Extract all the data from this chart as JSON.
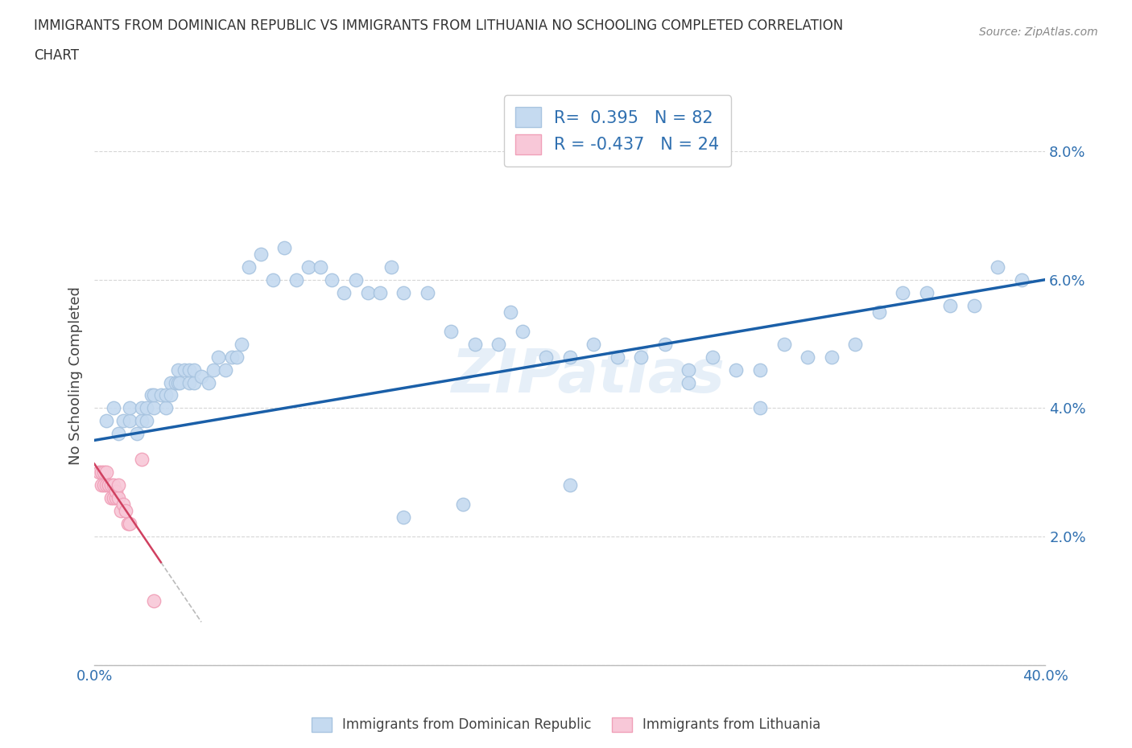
{
  "title_line1": "IMMIGRANTS FROM DOMINICAN REPUBLIC VS IMMIGRANTS FROM LITHUANIA NO SCHOOLING COMPLETED CORRELATION",
  "title_line2": "CHART",
  "source_text": "Source: ZipAtlas.com",
  "ylabel": "No Schooling Completed",
  "xlim": [
    0.0,
    0.4
  ],
  "ylim": [
    0.0,
    0.09
  ],
  "r_blue": 0.395,
  "n_blue": 82,
  "r_pink": -0.437,
  "n_pink": 24,
  "blue_scatter_color": "#c5daf0",
  "blue_scatter_edge": "#a8c4e0",
  "pink_scatter_color": "#f8c8d8",
  "pink_scatter_edge": "#f0a0b8",
  "blue_line_color": "#1a5fa8",
  "pink_line_color": "#d04060",
  "legend_label_blue": "Immigrants from Dominican Republic",
  "legend_label_pink": "Immigrants from Lithuania",
  "watermark": "ZIPatlas",
  "blue_x": [
    0.005,
    0.008,
    0.01,
    0.012,
    0.015,
    0.015,
    0.018,
    0.02,
    0.02,
    0.022,
    0.022,
    0.024,
    0.025,
    0.025,
    0.028,
    0.03,
    0.03,
    0.032,
    0.032,
    0.034,
    0.035,
    0.035,
    0.036,
    0.038,
    0.04,
    0.04,
    0.042,
    0.042,
    0.045,
    0.048,
    0.05,
    0.052,
    0.055,
    0.058,
    0.06,
    0.062,
    0.065,
    0.07,
    0.075,
    0.08,
    0.085,
    0.09,
    0.095,
    0.1,
    0.105,
    0.11,
    0.115,
    0.12,
    0.125,
    0.13,
    0.14,
    0.15,
    0.16,
    0.17,
    0.175,
    0.18,
    0.19,
    0.2,
    0.21,
    0.22,
    0.23,
    0.24,
    0.25,
    0.26,
    0.27,
    0.28,
    0.29,
    0.3,
    0.31,
    0.32,
    0.33,
    0.34,
    0.35,
    0.36,
    0.37,
    0.38,
    0.39,
    0.25,
    0.2,
    0.28,
    0.155,
    0.13
  ],
  "blue_y": [
    0.038,
    0.04,
    0.036,
    0.038,
    0.038,
    0.04,
    0.036,
    0.038,
    0.04,
    0.038,
    0.04,
    0.042,
    0.04,
    0.042,
    0.042,
    0.04,
    0.042,
    0.044,
    0.042,
    0.044,
    0.044,
    0.046,
    0.044,
    0.046,
    0.044,
    0.046,
    0.044,
    0.046,
    0.045,
    0.044,
    0.046,
    0.048,
    0.046,
    0.048,
    0.048,
    0.05,
    0.062,
    0.064,
    0.06,
    0.065,
    0.06,
    0.062,
    0.062,
    0.06,
    0.058,
    0.06,
    0.058,
    0.058,
    0.062,
    0.058,
    0.058,
    0.052,
    0.05,
    0.05,
    0.055,
    0.052,
    0.048,
    0.048,
    0.05,
    0.048,
    0.048,
    0.05,
    0.046,
    0.048,
    0.046,
    0.046,
    0.05,
    0.048,
    0.048,
    0.05,
    0.055,
    0.058,
    0.058,
    0.056,
    0.056,
    0.062,
    0.06,
    0.044,
    0.028,
    0.04,
    0.025,
    0.023
  ],
  "pink_x": [
    0.002,
    0.003,
    0.003,
    0.004,
    0.004,
    0.005,
    0.005,
    0.006,
    0.006,
    0.007,
    0.007,
    0.008,
    0.008,
    0.009,
    0.009,
    0.01,
    0.01,
    0.011,
    0.012,
    0.013,
    0.014,
    0.015,
    0.02,
    0.025
  ],
  "pink_y": [
    0.03,
    0.028,
    0.03,
    0.028,
    0.03,
    0.028,
    0.03,
    0.028,
    0.028,
    0.026,
    0.028,
    0.026,
    0.028,
    0.026,
    0.027,
    0.026,
    0.028,
    0.024,
    0.025,
    0.024,
    0.022,
    0.022,
    0.032,
    0.01
  ]
}
